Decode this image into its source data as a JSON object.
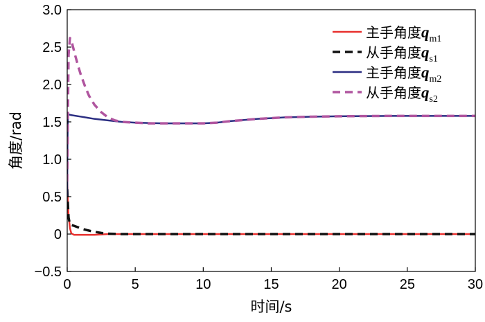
{
  "chart_data": {
    "type": "line",
    "xlabel": "时间/s",
    "ylabel": "角度/rad",
    "xlim": [
      0,
      30
    ],
    "ylim": [
      -0.5,
      3.0
    ],
    "x_ticks": [
      "0",
      "5",
      "10",
      "15",
      "20",
      "25",
      "30"
    ],
    "y_ticks": [
      "−0.5",
      "0",
      "0.5",
      "1.0",
      "1.5",
      "2.0",
      "2.5",
      "3.0"
    ],
    "grid": false,
    "legend_position": "top-right",
    "series": [
      {
        "name": "主手角度q_m1",
        "legend_prefix": "主手角度",
        "legend_var": "q",
        "legend_sub": "m1",
        "color": "#e8302e",
        "style": "solid",
        "x": [
          0,
          0.05,
          0.1,
          0.2,
          0.3,
          0.5,
          1,
          2,
          3,
          5,
          10,
          15,
          20,
          25,
          30
        ],
        "y": [
          0.7,
          0.45,
          0.25,
          0.08,
          0.01,
          -0.01,
          -0.01,
          -0.01,
          0,
          0,
          0,
          0,
          0,
          0,
          0
        ]
      },
      {
        "name": "从手角度q_s1",
        "legend_prefix": "从手角度",
        "legend_var": "q",
        "legend_sub": "s1",
        "color": "#111111",
        "style": "dashed",
        "x": [
          0,
          0.1,
          0.2,
          0.3,
          0.5,
          0.8,
          1,
          1.5,
          2,
          2.5,
          3,
          4,
          5,
          10,
          15,
          20,
          25,
          30
        ],
        "y": [
          0.6,
          0.22,
          0.13,
          0.12,
          0.11,
          0.09,
          0.075,
          0.05,
          0.03,
          0.015,
          0.005,
          0,
          0,
          0,
          0,
          0,
          0,
          0
        ]
      },
      {
        "name": "主手角度q_m2",
        "legend_prefix": "主手角度",
        "legend_var": "q",
        "legend_sub": "m2",
        "color": "#2b2e82",
        "style": "solid",
        "x": [
          0,
          0.02,
          0.05,
          0.1,
          0.3,
          1,
          2,
          3,
          4,
          5,
          6,
          7,
          8,
          9,
          10,
          11,
          12,
          13,
          14,
          15,
          16,
          18,
          20,
          22,
          24,
          26,
          28,
          30
        ],
        "y": [
          0.5,
          1.2,
          1.58,
          1.6,
          1.59,
          1.57,
          1.54,
          1.52,
          1.5,
          1.49,
          1.485,
          1.48,
          1.48,
          1.48,
          1.48,
          1.49,
          1.51,
          1.525,
          1.54,
          1.55,
          1.56,
          1.57,
          1.575,
          1.578,
          1.58,
          1.58,
          1.58,
          1.58
        ]
      },
      {
        "name": "从手角度q_s2",
        "legend_prefix": "从手角度",
        "legend_var": "q",
        "legend_sub": "s2",
        "color": "#b0559f",
        "style": "dashed",
        "x": [
          0,
          0.05,
          0.1,
          0.2,
          0.3,
          0.4,
          0.6,
          0.8,
          1,
          1.3,
          1.6,
          2,
          2.5,
          3,
          3.5,
          4,
          5,
          6,
          8,
          10,
          11,
          12,
          13,
          14,
          15,
          16,
          18,
          20,
          22,
          24,
          26,
          28,
          30
        ],
        "y": [
          0.7,
          1.6,
          2.4,
          2.62,
          2.6,
          2.52,
          2.38,
          2.25,
          2.13,
          1.98,
          1.85,
          1.73,
          1.63,
          1.56,
          1.52,
          1.5,
          1.49,
          1.48,
          1.48,
          1.48,
          1.49,
          1.51,
          1.525,
          1.54,
          1.55,
          1.56,
          1.57,
          1.575,
          1.578,
          1.58,
          1.58,
          1.58,
          1.58
        ]
      }
    ]
  }
}
